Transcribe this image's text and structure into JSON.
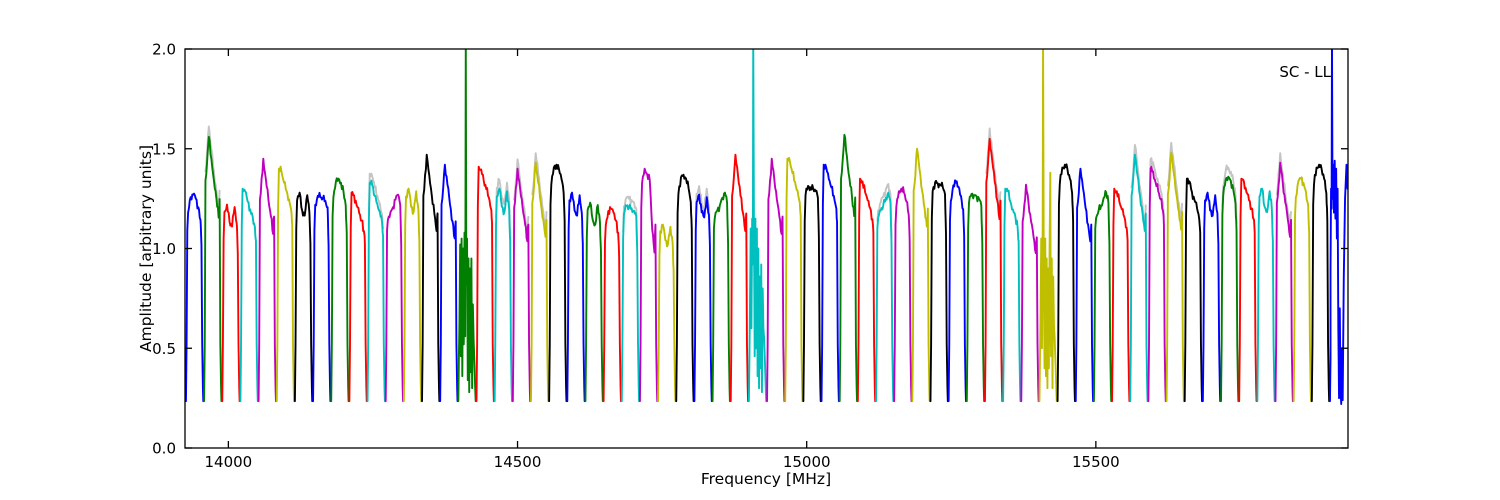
{
  "chart_data": {
    "type": "line",
    "title": "",
    "xlabel": "Frequency [MHz]",
    "ylabel": "Amplitude [arbitrary units]",
    "annotation": "SC - LL",
    "xlim": [
      13925,
      15936
    ],
    "ylim": [
      0.0,
      2.0
    ],
    "xticks": [
      14000,
      14500,
      15000,
      15500
    ],
    "yticks": [
      0.0,
      0.5,
      1.0,
      1.5,
      2.0
    ],
    "ytick_labels": [
      "0.0",
      "0.5",
      "1.0",
      "1.5",
      "2.0"
    ],
    "grid": false,
    "legend": "none",
    "color_cycle": [
      "#0000ff",
      "#007f00",
      "#ff0000",
      "#00bfbf",
      "#bf00bf",
      "#bfbf00",
      "#000000"
    ],
    "color_rule": "subband index mod 7",
    "ghost_color": "#c4c4c4",
    "baseline_amplitude": 0.235,
    "f_start_mhz": 13926,
    "subband_width_mhz": 31.4,
    "n_subbands": 64,
    "rfi_spike_freqs_mhz": [
      14403,
      14899,
      15402,
      15883
    ],
    "profiles": {
      "round": [
        0.93,
        0.99,
        1.0,
        0.985,
        0.95,
        0.9
      ],
      "double": [
        0.97,
        1.0,
        0.93,
        0.91,
        0.99,
        0.92
      ],
      "flat": [
        0.96,
        0.995,
        0.99,
        0.985,
        0.975,
        0.95
      ],
      "lefthigh": [
        1.0,
        0.99,
        0.95,
        0.92,
        0.89,
        0.85
      ],
      "righthigh": [
        0.9,
        0.93,
        0.95,
        0.98,
        1.0,
        0.96
      ],
      "peaky": [
        0.88,
        1.0,
        0.93,
        0.86,
        0.8,
        0.74
      ],
      "step": [
        0.95,
        1.0,
        0.98,
        0.96,
        0.78,
        0.7
      ]
    },
    "ghosts": [
      1,
      10,
      17,
      18,
      19,
      24,
      28,
      38,
      44,
      52,
      53,
      54,
      57,
      60
    ],
    "subbands": [
      {
        "p": 1.27,
        "s": "round"
      },
      {
        "p": 1.56,
        "s": "peaky"
      },
      {
        "p": 1.22,
        "s": "double"
      },
      {
        "p": 1.3,
        "s": "lefthigh"
      },
      {
        "p": 1.45,
        "s": "peaky"
      },
      {
        "p": 1.4,
        "s": "lefthigh"
      },
      {
        "p": 1.28,
        "s": "double"
      },
      {
        "p": 1.27,
        "s": "flat"
      },
      {
        "p": 1.35,
        "s": "round"
      },
      {
        "p": 1.28,
        "s": "lefthigh"
      },
      {
        "p": 1.33,
        "s": "lefthigh"
      },
      {
        "p": 1.27,
        "s": "righthigh"
      },
      {
        "p": 1.3,
        "s": "double"
      },
      {
        "p": 1.47,
        "s": "peaky"
      },
      {
        "p": 1.42,
        "s": "peaky"
      },
      {
        "p": 1.1,
        "s": "rfi",
        "pts": [
          [
            0.08,
            0.62
          ],
          [
            0.12,
            1.02
          ],
          [
            0.16,
            0.46
          ],
          [
            0.2,
            1.05
          ],
          [
            0.24,
            0.36
          ],
          [
            0.28,
            1.0
          ],
          [
            0.32,
            0.52
          ],
          [
            0.36,
            1.08
          ],
          [
            0.4,
            0.56
          ],
          [
            0.43,
            2.06
          ],
          [
            0.46,
            0.82
          ],
          [
            0.5,
            1.05
          ],
          [
            0.54,
            0.34
          ],
          [
            0.58,
            0.95
          ],
          [
            0.62,
            0.28
          ],
          [
            0.66,
            0.9
          ],
          [
            0.7,
            0.38
          ],
          [
            0.74,
            0.95
          ],
          [
            0.78,
            0.3
          ],
          [
            0.82,
            0.72
          ]
        ]
      },
      {
        "p": 1.41,
        "s": "lefthigh"
      },
      {
        "p": 1.3,
        "s": "double"
      },
      {
        "p": 1.4,
        "s": "peaky"
      },
      {
        "p": 1.43,
        "s": "peaky"
      },
      {
        "p": 1.42,
        "s": "round"
      },
      {
        "p": 1.28,
        "s": "double"
      },
      {
        "p": 1.23,
        "s": "double"
      },
      {
        "p": 1.2,
        "s": "round"
      },
      {
        "p": 1.22,
        "s": "flat"
      },
      {
        "p": 1.4,
        "s": "step"
      },
      {
        "p": 1.12,
        "s": "double"
      },
      {
        "p": 1.37,
        "s": "round"
      },
      {
        "p": 1.27,
        "s": "double"
      },
      {
        "p": 1.28,
        "s": "righthigh"
      },
      {
        "p": 1.47,
        "s": "peaky"
      },
      {
        "p": 1.15,
        "s": "rfi",
        "pts": [
          [
            0.08,
            0.72
          ],
          [
            0.12,
            1.1
          ],
          [
            0.16,
            0.6
          ],
          [
            0.2,
            1.15
          ],
          [
            0.24,
            0.92
          ],
          [
            0.26,
            2.06
          ],
          [
            0.3,
            1.1
          ],
          [
            0.34,
            0.46
          ],
          [
            0.38,
            1.15
          ],
          [
            0.42,
            0.5
          ],
          [
            0.46,
            1.1
          ],
          [
            0.5,
            0.36
          ],
          [
            0.54,
            1.0
          ],
          [
            0.58,
            0.3
          ],
          [
            0.62,
            0.86
          ],
          [
            0.66,
            0.4
          ],
          [
            0.7,
            0.92
          ],
          [
            0.74,
            0.28
          ],
          [
            0.78,
            0.8
          ],
          [
            0.82,
            0.6
          ]
        ]
      },
      {
        "p": 1.45,
        "s": "peaky"
      },
      {
        "p": 1.45,
        "s": "lefthigh"
      },
      {
        "p": 1.32,
        "s": "flat"
      },
      {
        "p": 1.42,
        "s": "lefthigh"
      },
      {
        "p": 1.57,
        "s": "peaky"
      },
      {
        "p": 1.35,
        "s": "lefthigh"
      },
      {
        "p": 1.28,
        "s": "righthigh"
      },
      {
        "p": 1.3,
        "s": "round"
      },
      {
        "p": 1.5,
        "s": "peaky"
      },
      {
        "p": 1.34,
        "s": "flat"
      },
      {
        "p": 1.33,
        "s": "round"
      },
      {
        "p": 1.28,
        "s": "flat"
      },
      {
        "p": 1.55,
        "s": "peaky"
      },
      {
        "p": 1.3,
        "s": "lefthigh"
      },
      {
        "p": 1.32,
        "s": "peaky"
      },
      {
        "p": 1.12,
        "s": "rfi",
        "pts": [
          [
            0.08,
            0.66
          ],
          [
            0.12,
            1.05
          ],
          [
            0.16,
            0.5
          ],
          [
            0.2,
            1.1
          ],
          [
            0.22,
            2.06
          ],
          [
            0.26,
            0.92
          ],
          [
            0.3,
            0.4
          ],
          [
            0.34,
            1.05
          ],
          [
            0.38,
            0.36
          ],
          [
            0.42,
            0.95
          ],
          [
            0.46,
            0.3
          ],
          [
            0.5,
            0.9
          ],
          [
            0.54,
            0.4
          ],
          [
            0.58,
            1.0
          ],
          [
            0.62,
            1.38
          ],
          [
            0.64,
            0.7
          ],
          [
            0.66,
            0.46
          ],
          [
            0.7,
            0.95
          ],
          [
            0.74,
            0.3
          ],
          [
            0.78,
            0.86
          ],
          [
            0.82,
            0.62
          ]
        ]
      },
      {
        "p": 1.42,
        "s": "round"
      },
      {
        "p": 1.4,
        "s": "peaky"
      },
      {
        "p": 1.28,
        "s": "righthigh"
      },
      {
        "p": 1.3,
        "s": "lefthigh"
      },
      {
        "p": 1.47,
        "s": "peaky"
      },
      {
        "p": 1.4,
        "s": "lefthigh"
      },
      {
        "p": 1.48,
        "s": "peaky"
      },
      {
        "p": 1.35,
        "s": "lefthigh"
      },
      {
        "p": 1.28,
        "s": "double"
      },
      {
        "p": 1.36,
        "s": "round"
      },
      {
        "p": 1.35,
        "s": "lefthigh"
      },
      {
        "p": 1.3,
        "s": "double"
      },
      {
        "p": 1.43,
        "s": "peaky"
      },
      {
        "p": 1.35,
        "s": "round"
      },
      {
        "p": 1.42,
        "s": "round"
      },
      {
        "p": 1.38,
        "s": "rfi",
        "nofall": true,
        "pts": [
          [
            0.05,
            0.9
          ],
          [
            0.08,
            1.3
          ],
          [
            0.11,
            1.2
          ],
          [
            0.13,
            2.06
          ],
          [
            0.16,
            1.25
          ],
          [
            0.2,
            1.42
          ],
          [
            0.24,
            1.18
          ],
          [
            0.28,
            1.44
          ],
          [
            0.32,
            1.15
          ],
          [
            0.36,
            1.4
          ],
          [
            0.4,
            1.05
          ],
          [
            0.44,
            1.3
          ],
          [
            0.48,
            0.6
          ],
          [
            0.52,
            0.25
          ],
          [
            0.56,
            0.7
          ],
          [
            0.6,
            0.3
          ],
          [
            0.64,
            0.22
          ],
          [
            0.68,
            0.5
          ],
          [
            0.72,
            0.24
          ],
          [
            0.78,
            0.85
          ],
          [
            0.85,
            1.25
          ],
          [
            0.93,
            1.42
          ],
          [
            0.985,
            1.3
          ]
        ]
      }
    ]
  },
  "layout_colors": {
    "background": "#ffffff",
    "spine": "#000000",
    "tick_label": "#000000"
  }
}
